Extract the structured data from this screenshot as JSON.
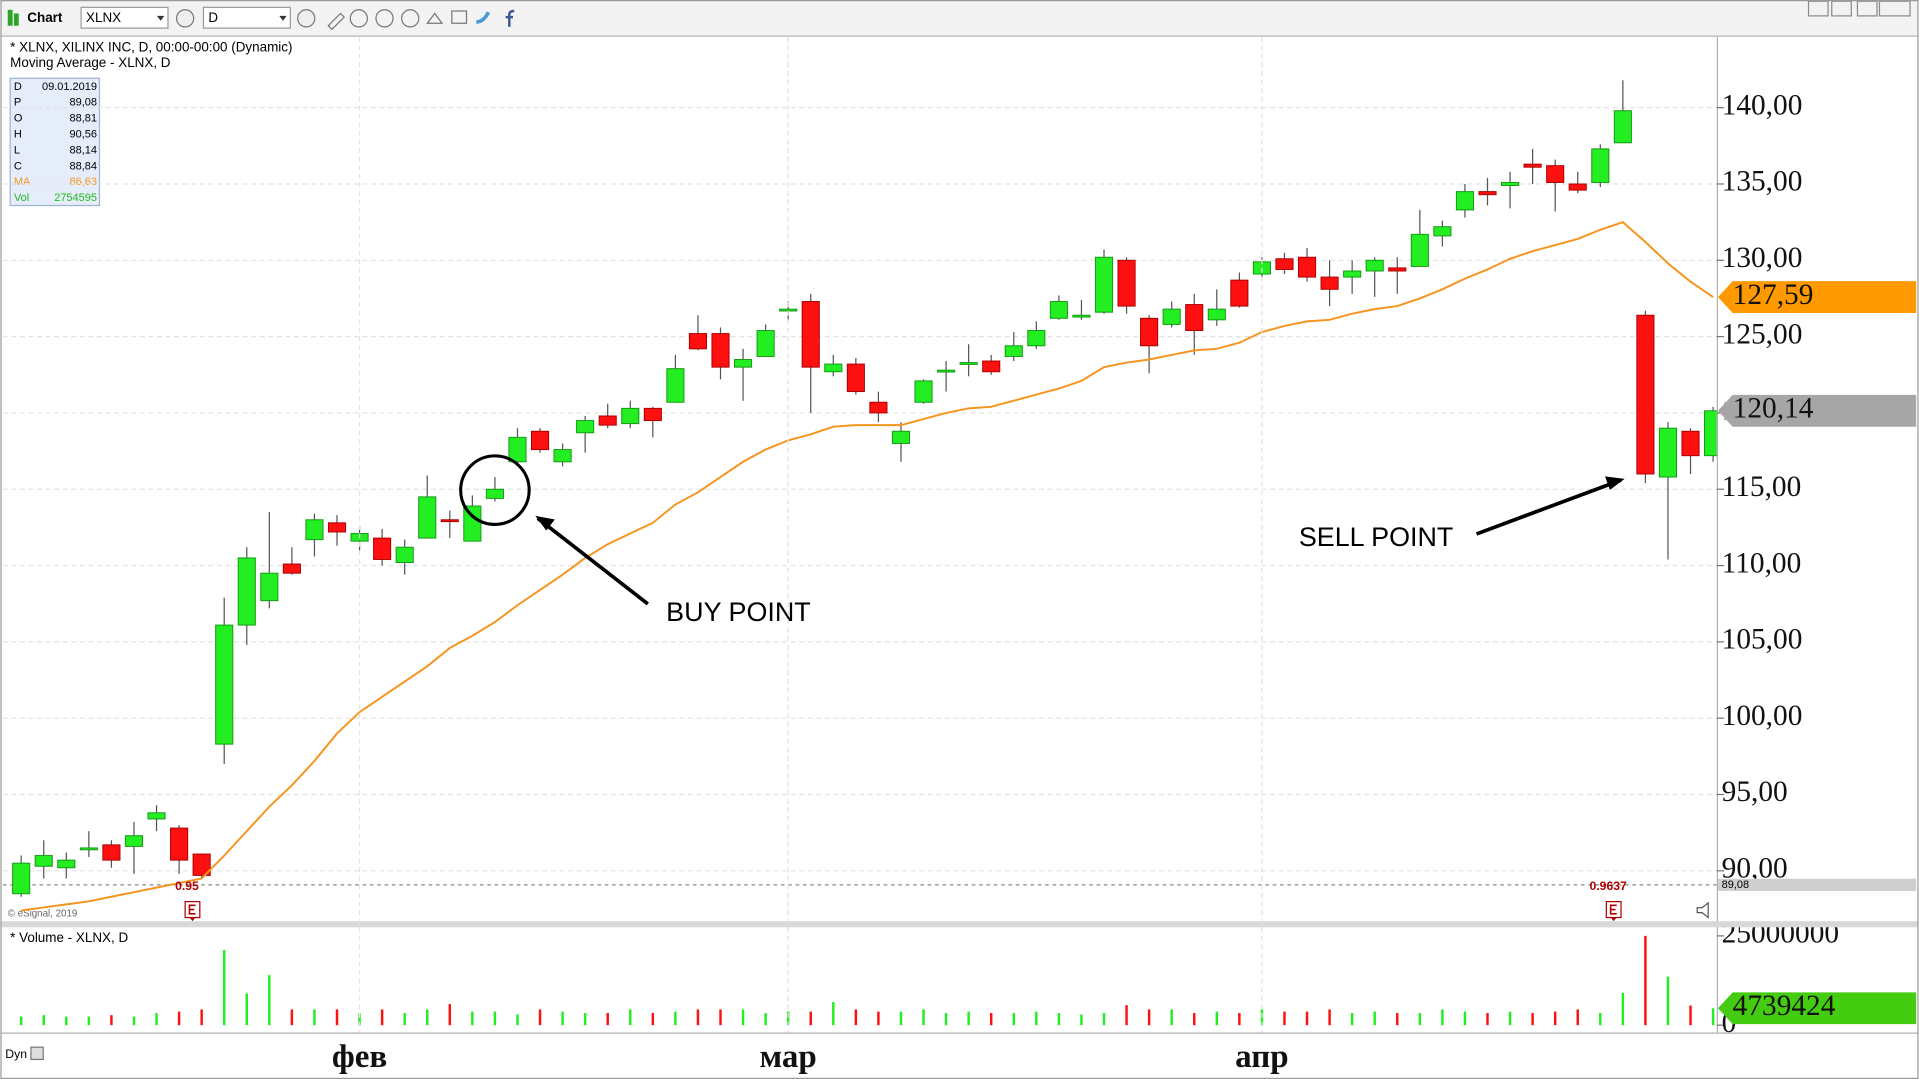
{
  "toolbar": {
    "title": "Chart",
    "symbol": "XLNX",
    "interval": "D"
  },
  "info_box": {
    "rows": [
      {
        "key": "D",
        "value": "09.01.2019",
        "color": "#000000"
      },
      {
        "key": "P",
        "value": "89,08",
        "color": "#000000"
      },
      {
        "key": "O",
        "value": "88,81",
        "color": "#000000"
      },
      {
        "key": "H",
        "value": "90,56",
        "color": "#000000"
      },
      {
        "key": "L",
        "value": "88,14",
        "color": "#000000"
      },
      {
        "key": "C",
        "value": "88,84",
        "color": "#000000"
      },
      {
        "key": "MA",
        "value": "86,63",
        "color": "#f7941d"
      },
      {
        "key": "Vol",
        "value": "2754595",
        "color": "#22bb22"
      }
    ]
  },
  "copyright": "© eSignal, 2019",
  "footer": {
    "mode": "Dyn"
  },
  "chart_data": [
    {
      "type": "candlestick",
      "title": "* XLNX, XILINX INC, D, 00:00-00:00 (Dynamic)",
      "subtitle": "Moving Average - XLNX, D",
      "categories": [
        null,
        null,
        null,
        null,
        null,
        null,
        null,
        null,
        null,
        null,
        null,
        null,
        null,
        null,
        null,
        "фев",
        null,
        null,
        null,
        null,
        null,
        null,
        null,
        null,
        null,
        null,
        null,
        null,
        null,
        null,
        null,
        null,
        null,
        null,
        "мар",
        null,
        null,
        null,
        null,
        null,
        null,
        null,
        null,
        null,
        null,
        null,
        null,
        null,
        null,
        null,
        null,
        null,
        null,
        null,
        null,
        "апр",
        null,
        null,
        null,
        null,
        null,
        null,
        null,
        null,
        null,
        null,
        null,
        null,
        null,
        null,
        null,
        null,
        null,
        null,
        null,
        null
      ],
      "open": [
        88.5,
        90.3,
        90.2,
        91.4,
        91.7,
        91.6,
        93.4,
        92.8,
        91.1,
        98.3,
        106.1,
        107.7,
        110.1,
        111.7,
        112.8,
        111.6,
        111.8,
        110.2,
        111.8,
        113.0,
        111.6,
        114.4,
        116.8,
        118.8,
        116.8,
        118.7,
        119.8,
        119.3,
        120.3,
        120.7,
        125.2,
        125.2,
        123.0,
        123.7,
        126.7,
        127.3,
        122.7,
        123.2,
        120.7,
        118.0,
        120.7,
        122.7,
        123.2,
        123.4,
        123.7,
        124.4,
        126.2,
        126.3,
        126.6,
        130.0,
        126.2,
        125.8,
        127.1,
        126.1,
        128.7,
        129.1,
        130.1,
        130.2,
        128.9,
        128.9,
        129.3,
        129.5,
        129.6,
        131.6,
        133.3,
        134.5,
        134.9,
        136.3,
        136.2,
        135.0,
        135.1,
        137.7,
        126.4,
        115.8,
        118.8,
        117.2
      ],
      "high": [
        91.0,
        92.0,
        91.2,
        92.6,
        92.0,
        93.2,
        94.3,
        93.0,
        91.1,
        107.9,
        111.2,
        113.5,
        111.2,
        113.4,
        113.3,
        112.6,
        112.4,
        111.7,
        115.9,
        113.6,
        114.6,
        115.8,
        119.0,
        119.0,
        118.0,
        119.8,
        120.6,
        120.8,
        120.4,
        123.8,
        126.4,
        125.6,
        124.2,
        125.8,
        127.3,
        127.8,
        123.8,
        123.6,
        121.4,
        119.4,
        122.2,
        123.4,
        124.5,
        123.8,
        125.3,
        126.0,
        127.7,
        127.4,
        130.7,
        130.2,
        126.4,
        127.3,
        127.8,
        128.1,
        129.2,
        130.2,
        130.5,
        130.8,
        130.0,
        130.0,
        130.2,
        130.2,
        133.3,
        132.6,
        135.0,
        135.4,
        135.8,
        137.3,
        136.6,
        135.8,
        137.6,
        141.8,
        126.7,
        119.4,
        119.0,
        120.4
      ],
      "low": [
        88.3,
        89.5,
        89.5,
        90.9,
        90.2,
        89.8,
        92.6,
        89.8,
        89.5,
        97.0,
        104.8,
        107.2,
        109.4,
        110.6,
        111.3,
        111.0,
        110.0,
        109.4,
        111.8,
        111.8,
        111.6,
        114.2,
        116.6,
        117.4,
        116.5,
        117.4,
        119.0,
        119.0,
        118.4,
        120.7,
        124.1,
        122.2,
        120.8,
        123.7,
        126.1,
        120.0,
        122.4,
        121.2,
        119.4,
        116.8,
        120.6,
        121.4,
        122.4,
        122.5,
        123.4,
        124.2,
        126.1,
        126.1,
        126.5,
        126.5,
        122.6,
        125.6,
        123.8,
        125.7,
        126.9,
        128.9,
        129.1,
        128.6,
        127.0,
        127.8,
        127.6,
        127.8,
        129.6,
        130.9,
        132.8,
        133.6,
        133.4,
        135.0,
        133.2,
        134.4,
        134.8,
        137.7,
        115.4,
        110.4,
        116.0,
        116.8
      ],
      "close": [
        90.5,
        91.0,
        90.7,
        91.5,
        90.7,
        92.3,
        93.8,
        90.7,
        89.7,
        106.1,
        110.5,
        109.5,
        109.5,
        113.0,
        112.2,
        112.1,
        110.4,
        111.2,
        114.5,
        112.9,
        113.9,
        115.0,
        118.4,
        117.6,
        117.6,
        119.5,
        119.2,
        120.3,
        119.5,
        122.9,
        124.2,
        123.0,
        123.5,
        125.4,
        126.8,
        123.0,
        123.2,
        121.4,
        120.0,
        118.8,
        122.1,
        122.8,
        123.3,
        122.7,
        124.4,
        125.4,
        127.3,
        126.4,
        130.2,
        127.0,
        124.4,
        126.8,
        125.4,
        126.8,
        127.0,
        129.9,
        129.4,
        128.9,
        128.1,
        129.3,
        130.0,
        129.3,
        131.7,
        132.2,
        134.5,
        134.3,
        135.1,
        136.1,
        135.1,
        134.6,
        137.3,
        139.8,
        116.0,
        119.0,
        117.2,
        120.14
      ],
      "up_color": "#22ee22",
      "down_color": "#ff1010",
      "moving_average": {
        "color": "#f7941d",
        "values": [
          87.4,
          87.6,
          87.8,
          88.0,
          88.3,
          88.6,
          88.9,
          89.2,
          89.5,
          91.0,
          92.6,
          94.2,
          95.6,
          97.2,
          99.0,
          100.4,
          101.4,
          102.4,
          103.4,
          104.6,
          105.4,
          106.3,
          107.4,
          108.4,
          109.4,
          110.5,
          111.4,
          112.1,
          112.8,
          114.0,
          114.8,
          115.8,
          116.8,
          117.6,
          118.2,
          118.6,
          119.1,
          119.2,
          119.2,
          119.2,
          119.6,
          120.0,
          120.3,
          120.4,
          120.8,
          121.2,
          121.6,
          122.1,
          123.0,
          123.3,
          123.5,
          123.8,
          124.1,
          124.2,
          124.6,
          125.3,
          125.7,
          126.0,
          126.1,
          126.5,
          126.8,
          127.0,
          127.5,
          128.1,
          128.8,
          129.4,
          130.1,
          130.6,
          131.0,
          131.4,
          132.0,
          132.5,
          131.2,
          129.8,
          128.6,
          127.59
        ]
      },
      "ylim": [
        86.7,
        144.65
      ],
      "yticks": [
        {
          "value": 90,
          "label": "90,00"
        },
        {
          "value": 95,
          "label": "95,00"
        },
        {
          "value": 100,
          "label": "100,00"
        },
        {
          "value": 105,
          "label": "105,00"
        },
        {
          "value": 110,
          "label": "110,00"
        },
        {
          "value": 115,
          "label": "115,00"
        },
        {
          "value": 120,
          "label": "120,00"
        },
        {
          "value": 125,
          "label": "125,00"
        },
        {
          "value": 130,
          "label": "130,00"
        },
        {
          "value": 135,
          "label": "135,00"
        },
        {
          "value": 140,
          "label": "140,00"
        }
      ],
      "grid": true,
      "price_tags": [
        {
          "value": 127.59,
          "label": "127,59",
          "color": "#ff9900"
        },
        {
          "value": 120.14,
          "label": "120,14",
          "color": "#a6a6a6"
        }
      ],
      "reference_line": {
        "value": 89.08,
        "label": "89,08"
      },
      "events": [
        {
          "index": 8,
          "label": "0.95"
        },
        {
          "index": 71,
          "label": "0.9637"
        }
      ],
      "annotations": [
        {
          "text": "BUY POINT",
          "index": 21
        },
        {
          "text": "SELL POINT",
          "index": 72
        }
      ]
    },
    {
      "type": "bar",
      "title": "* Volume - XLNX, D",
      "values": [
        2400000,
        2800000,
        2400000,
        2400000,
        2800000,
        2400000,
        3400000,
        3800000,
        4400000,
        21000000,
        8900000,
        14000000,
        4400000,
        4400000,
        4400000,
        3400000,
        4400000,
        3400000,
        4400000,
        5900000,
        3800000,
        3800000,
        3000000,
        4400000,
        3800000,
        3400000,
        3400000,
        4400000,
        3400000,
        3800000,
        4400000,
        4400000,
        4400000,
        3400000,
        3800000,
        3800000,
        6500000,
        4400000,
        3800000,
        3800000,
        4400000,
        3400000,
        3800000,
        3400000,
        3400000,
        3800000,
        3400000,
        3000000,
        3400000,
        5600000,
        4400000,
        4400000,
        3400000,
        3800000,
        3400000,
        4400000,
        3800000,
        3800000,
        4400000,
        3400000,
        3800000,
        3400000,
        3400000,
        4400000,
        3800000,
        3400000,
        3800000,
        3400000,
        3800000,
        4400000,
        3400000,
        9000000,
        25000000,
        13600000,
        5500000,
        4739424
      ],
      "ylim": [
        0,
        25000000
      ],
      "yticks": [
        0,
        25000000
      ],
      "tag_color": "#44cc11"
    }
  ]
}
